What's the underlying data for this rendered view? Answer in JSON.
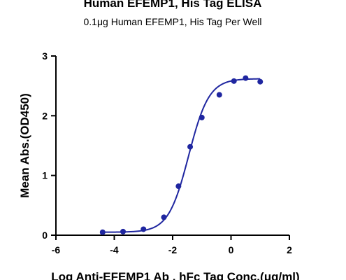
{
  "chart_data": {
    "type": "scatter",
    "title": "Human EFEMP1, His Tag ELISA",
    "subtitle": "0.1μg Human EFEMP1, His Tag Per Well",
    "xlabel": "Log Anti-EFEMP1 Ab , hFc Tag Conc.(μg/ml)",
    "ylabel": "Mean Abs.(OD450)",
    "xlim": [
      -6,
      2
    ],
    "ylim": [
      0,
      3
    ],
    "x_ticks": [
      -6,
      -4,
      -2,
      0,
      2
    ],
    "y_ticks": [
      0,
      1,
      2,
      3
    ],
    "grid": false,
    "legend": "none",
    "colors": {
      "series": "#1f26a0"
    },
    "series": [
      {
        "x": [
          -4.4,
          -3.7,
          -3.0,
          -2.3,
          -1.8,
          -1.4,
          -1.0,
          -0.4,
          0.1,
          0.5,
          1.0
        ],
        "y": [
          0.05,
          0.06,
          0.1,
          0.3,
          0.82,
          1.48,
          1.97,
          2.35,
          2.58,
          2.63,
          2.57
        ]
      }
    ],
    "fit_curve": {
      "model": "4PL",
      "bottom": 0.05,
      "top": 2.62,
      "ec50_log": -1.45,
      "hill": 1.25,
      "x_range": [
        -4.4,
        1.0
      ]
    }
  }
}
